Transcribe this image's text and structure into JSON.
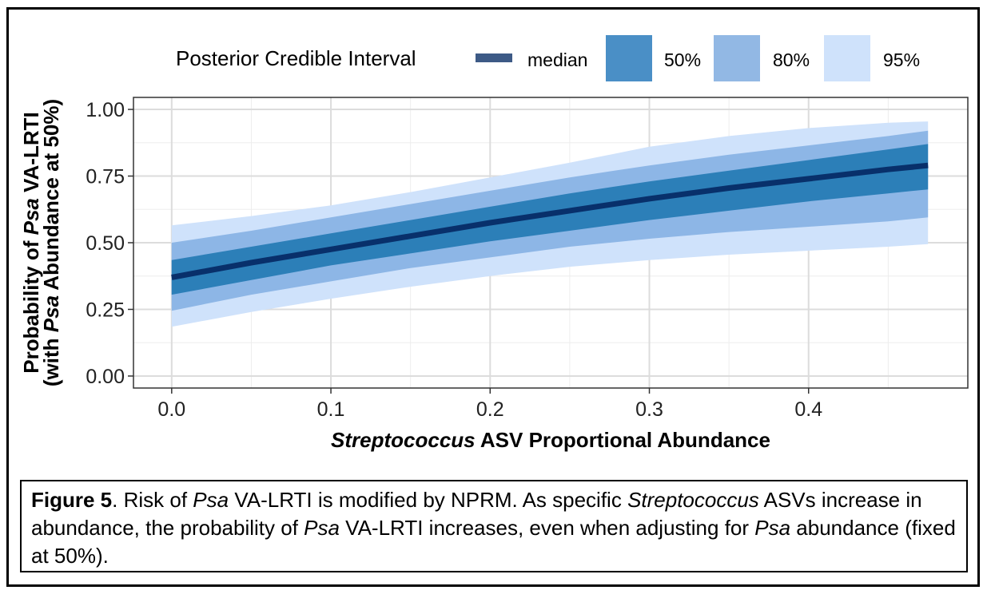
{
  "chart_data": {
    "type": "area",
    "x": [
      0.0,
      0.05,
      0.1,
      0.15,
      0.2,
      0.25,
      0.3,
      0.35,
      0.4,
      0.45,
      0.475
    ],
    "series": [
      {
        "name": "median",
        "values": [
          0.37,
          0.425,
          0.475,
          0.525,
          0.575,
          0.62,
          0.665,
          0.705,
          0.74,
          0.775,
          0.79
        ]
      },
      {
        "name": "50%",
        "lower": [
          0.305,
          0.36,
          0.415,
          0.46,
          0.505,
          0.545,
          0.585,
          0.62,
          0.655,
          0.685,
          0.7
        ],
        "upper": [
          0.435,
          0.485,
          0.535,
          0.585,
          0.635,
          0.685,
          0.73,
          0.77,
          0.81,
          0.85,
          0.87
        ]
      },
      {
        "name": "80%",
        "lower": [
          0.245,
          0.305,
          0.355,
          0.405,
          0.445,
          0.485,
          0.515,
          0.54,
          0.56,
          0.58,
          0.595
        ],
        "upper": [
          0.5,
          0.545,
          0.595,
          0.645,
          0.695,
          0.745,
          0.79,
          0.83,
          0.865,
          0.9,
          0.92
        ]
      },
      {
        "name": "95%",
        "lower": [
          0.185,
          0.24,
          0.29,
          0.335,
          0.375,
          0.41,
          0.435,
          0.455,
          0.47,
          0.485,
          0.495
        ],
        "upper": [
          0.565,
          0.6,
          0.64,
          0.69,
          0.745,
          0.8,
          0.86,
          0.9,
          0.93,
          0.95,
          0.955
        ]
      }
    ],
    "legend_title": "Posterior Credible Interval",
    "legend_position": "top",
    "xlabel_bold_italic": "Streptococcus",
    "xlabel_rest": " ASV Proportional Abundance",
    "ylabel_line1_a": "Probability of ",
    "ylabel_line1_i": "Psa",
    "ylabel_line1_b": " VA-LRTI",
    "ylabel_line2_a": "(with ",
    "ylabel_line2_i": "Psa",
    "ylabel_line2_b": " Abundance at 50%)",
    "xlim": [
      -0.024,
      0.5
    ],
    "ylim": [
      -0.045,
      1.045
    ],
    "xticks": [
      0.0,
      0.1,
      0.2,
      0.3,
      0.4
    ],
    "xtick_labels": [
      "0.0",
      "0.1",
      "0.2",
      "0.3",
      "0.4"
    ],
    "xminor": [
      0.05,
      0.15,
      0.25,
      0.35,
      0.45
    ],
    "yticks": [
      0.0,
      0.25,
      0.5,
      0.75,
      1.0
    ],
    "ytick_labels": [
      "0.00",
      "0.25",
      "0.50",
      "0.75",
      "1.00"
    ],
    "yminor": [
      0.125,
      0.375,
      0.625,
      0.875
    ],
    "grid": true,
    "colors": {
      "median": "#08306b",
      "50%": "#2c7fb8",
      "80%": "#8db6e6",
      "95%": "#cfe2fb",
      "legend_median": "#3d5a86",
      "legend_50": "#4a8fc6",
      "legend_80": "#92b8e4",
      "legend_95": "#cfe2fb"
    }
  },
  "caption": {
    "fig_label": "Figure 5",
    "t1": ". Risk of ",
    "i1": "Psa",
    "t2": " VA-LRTI is modified by NPRM. As specific ",
    "i2": "Streptococcus",
    "t3": " ASVs increase in abundance, the probability of ",
    "i3": "Psa",
    "t4": " VA-LRTI increases, even when adjusting for ",
    "i4": "Psa",
    "t5": " abundance (fixed at 50%)."
  }
}
